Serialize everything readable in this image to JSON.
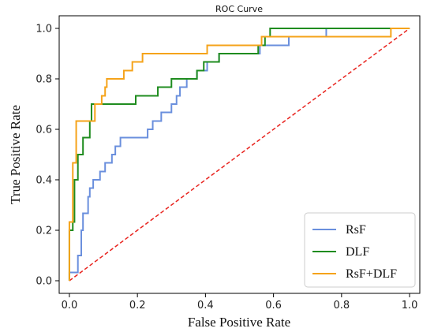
{
  "chart_data": {
    "type": "line",
    "title": "ROC Curve",
    "xlabel": "False Positive Rate",
    "ylabel": "True Positive Rate",
    "xlim": [
      -0.03,
      1.03
    ],
    "ylim": [
      -0.05,
      1.05
    ],
    "xticks": [
      "0.0",
      "0.2",
      "0.4",
      "0.6",
      "0.8",
      "1.0"
    ],
    "yticks": [
      "0.0",
      "0.2",
      "0.4",
      "0.6",
      "0.8",
      "1.0"
    ],
    "grid": false,
    "legend_position": "bottom-right",
    "series": [
      {
        "name": "RsF",
        "color": "#6a8fdd",
        "points": [
          [
            0,
            0
          ],
          [
            0,
            0.033
          ],
          [
            0.025,
            0.033
          ],
          [
            0.025,
            0.1
          ],
          [
            0.035,
            0.1
          ],
          [
            0.035,
            0.2
          ],
          [
            0.04,
            0.2
          ],
          [
            0.04,
            0.267
          ],
          [
            0.055,
            0.267
          ],
          [
            0.055,
            0.333
          ],
          [
            0.06,
            0.333
          ],
          [
            0.06,
            0.367
          ],
          [
            0.07,
            0.367
          ],
          [
            0.07,
            0.4
          ],
          [
            0.09,
            0.4
          ],
          [
            0.09,
            0.433
          ],
          [
            0.105,
            0.433
          ],
          [
            0.105,
            0.467
          ],
          [
            0.125,
            0.467
          ],
          [
            0.125,
            0.5
          ],
          [
            0.135,
            0.5
          ],
          [
            0.135,
            0.533
          ],
          [
            0.15,
            0.533
          ],
          [
            0.15,
            0.567
          ],
          [
            0.23,
            0.567
          ],
          [
            0.23,
            0.6
          ],
          [
            0.245,
            0.6
          ],
          [
            0.245,
            0.633
          ],
          [
            0.27,
            0.633
          ],
          [
            0.27,
            0.667
          ],
          [
            0.3,
            0.667
          ],
          [
            0.3,
            0.7
          ],
          [
            0.315,
            0.7
          ],
          [
            0.315,
            0.733
          ],
          [
            0.325,
            0.733
          ],
          [
            0.325,
            0.767
          ],
          [
            0.345,
            0.767
          ],
          [
            0.345,
            0.8
          ],
          [
            0.375,
            0.8
          ],
          [
            0.375,
            0.833
          ],
          [
            0.405,
            0.833
          ],
          [
            0.405,
            0.867
          ],
          [
            0.44,
            0.867
          ],
          [
            0.44,
            0.9
          ],
          [
            0.56,
            0.9
          ],
          [
            0.56,
            0.933
          ],
          [
            0.645,
            0.933
          ],
          [
            0.645,
            0.967
          ],
          [
            0.755,
            0.967
          ],
          [
            0.755,
            1.0
          ],
          [
            1.0,
            1.0
          ]
        ]
      },
      {
        "name": "DLF",
        "color": "#1f8c1f",
        "points": [
          [
            0,
            0
          ],
          [
            0,
            0.2
          ],
          [
            0.01,
            0.2
          ],
          [
            0.01,
            0.233
          ],
          [
            0.015,
            0.233
          ],
          [
            0.015,
            0.4
          ],
          [
            0.025,
            0.4
          ],
          [
            0.025,
            0.5
          ],
          [
            0.04,
            0.5
          ],
          [
            0.04,
            0.567
          ],
          [
            0.06,
            0.567
          ],
          [
            0.06,
            0.633
          ],
          [
            0.065,
            0.633
          ],
          [
            0.065,
            0.7
          ],
          [
            0.195,
            0.7
          ],
          [
            0.195,
            0.733
          ],
          [
            0.26,
            0.733
          ],
          [
            0.26,
            0.767
          ],
          [
            0.3,
            0.767
          ],
          [
            0.3,
            0.8
          ],
          [
            0.375,
            0.8
          ],
          [
            0.375,
            0.833
          ],
          [
            0.395,
            0.833
          ],
          [
            0.395,
            0.867
          ],
          [
            0.44,
            0.867
          ],
          [
            0.44,
            0.9
          ],
          [
            0.555,
            0.9
          ],
          [
            0.555,
            0.933
          ],
          [
            0.575,
            0.933
          ],
          [
            0.575,
            0.967
          ],
          [
            0.59,
            0.967
          ],
          [
            0.59,
            1.0
          ],
          [
            1.0,
            1.0
          ]
        ]
      },
      {
        "name": "RsF+DLF",
        "color": "#f5a31a",
        "points": [
          [
            0,
            0
          ],
          [
            0,
            0.233
          ],
          [
            0.01,
            0.233
          ],
          [
            0.01,
            0.467
          ],
          [
            0.02,
            0.467
          ],
          [
            0.02,
            0.633
          ],
          [
            0.075,
            0.633
          ],
          [
            0.075,
            0.7
          ],
          [
            0.095,
            0.7
          ],
          [
            0.095,
            0.733
          ],
          [
            0.105,
            0.733
          ],
          [
            0.105,
            0.767
          ],
          [
            0.11,
            0.767
          ],
          [
            0.11,
            0.8
          ],
          [
            0.16,
            0.8
          ],
          [
            0.16,
            0.833
          ],
          [
            0.185,
            0.833
          ],
          [
            0.185,
            0.867
          ],
          [
            0.215,
            0.867
          ],
          [
            0.215,
            0.9
          ],
          [
            0.405,
            0.9
          ],
          [
            0.405,
            0.933
          ],
          [
            0.565,
            0.933
          ],
          [
            0.565,
            0.967
          ],
          [
            0.945,
            0.967
          ],
          [
            0.945,
            1.0
          ],
          [
            1.0,
            1.0
          ]
        ]
      }
    ],
    "reference_line": {
      "points": [
        [
          0,
          0
        ],
        [
          1,
          1
        ]
      ],
      "color": "#e8231e",
      "style": "dashed"
    }
  }
}
